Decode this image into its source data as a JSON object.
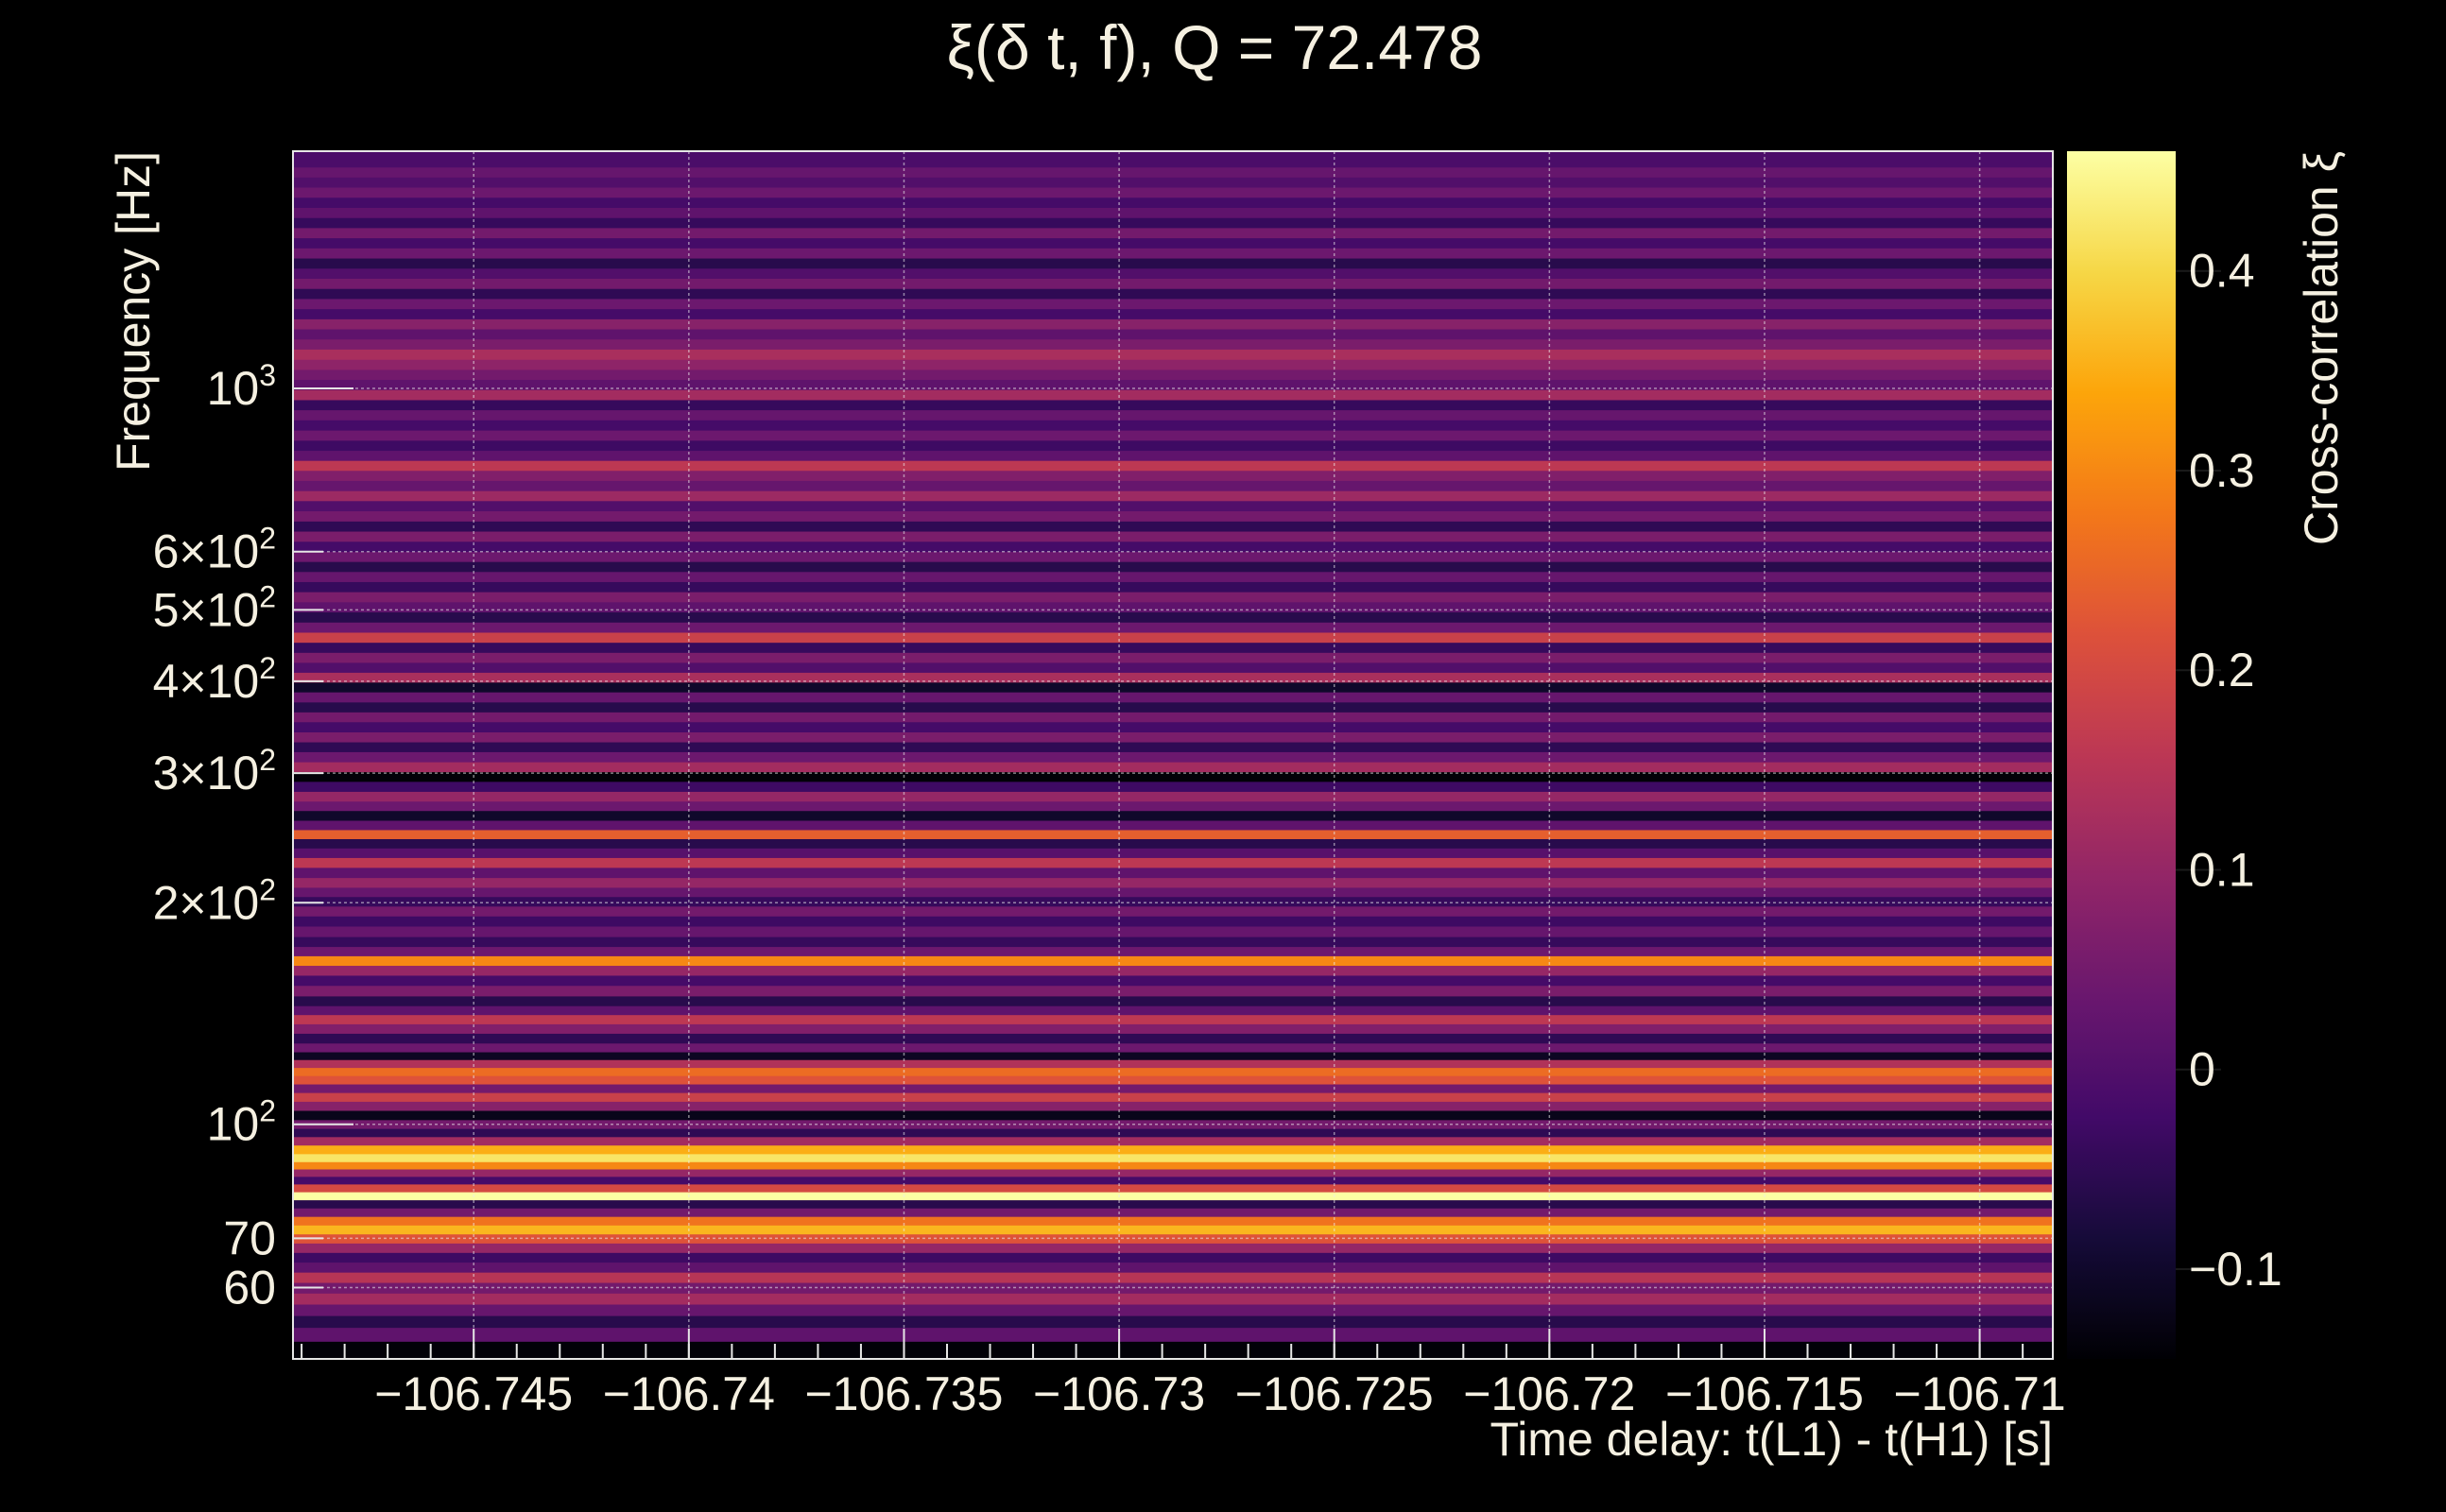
{
  "chart_data": {
    "type": "heatmap",
    "title": "ξ(δ t, f), Q = 72.478",
    "xlabel": "Time delay: t(L1) - t(H1) [s]",
    "ylabel": "Frequency [Hz]",
    "colorbar_label": "Cross-correlation ξ",
    "colormap": "inferno",
    "background": "#000000",
    "text_color": "#f5f0e1",
    "grid": true,
    "y_scale": "log",
    "xlim": [
      -106.7492,
      -106.7083
    ],
    "ylim": [
      48,
      2100
    ],
    "clim": [
      -0.145,
      0.46
    ],
    "x_ticks": [
      {
        "value": -106.745,
        "label": "−106.745"
      },
      {
        "value": -106.74,
        "label": "−106.74"
      },
      {
        "value": -106.735,
        "label": "−106.735"
      },
      {
        "value": -106.73,
        "label": "−106.73"
      },
      {
        "value": -106.725,
        "label": "−106.725"
      },
      {
        "value": -106.72,
        "label": "−106.72"
      },
      {
        "value": -106.715,
        "label": "−106.715"
      },
      {
        "value": -106.71,
        "label": "−106.71"
      }
    ],
    "y_ticks": [
      {
        "value": 60,
        "label": "60"
      },
      {
        "value": 70,
        "label": "70"
      },
      {
        "value": 100,
        "base": "10",
        "exp": "2"
      },
      {
        "value": 200,
        "base": "2×10",
        "exp": "2"
      },
      {
        "value": 300,
        "base": "3×10",
        "exp": "2"
      },
      {
        "value": 400,
        "base": "4×10",
        "exp": "2"
      },
      {
        "value": 500,
        "base": "5×10",
        "exp": "2"
      },
      {
        "value": 600,
        "base": "6×10",
        "exp": "2"
      },
      {
        "value": 1000,
        "base": "10",
        "exp": "3"
      }
    ],
    "colorbar_ticks": [
      {
        "value": -0.1,
        "label": "−0.1"
      },
      {
        "value": 0,
        "label": "0"
      },
      {
        "value": 0.1,
        "label": "0.1"
      },
      {
        "value": 0.2,
        "label": "0.2"
      },
      {
        "value": 0.3,
        "label": "0.3"
      },
      {
        "value": 0.4,
        "label": "0.4"
      }
    ],
    "bands": [
      {
        "f": 49.5,
        "xi": -0.14
      },
      {
        "f": 52,
        "xi": 0.02
      },
      {
        "f": 54,
        "xi": -0.06
      },
      {
        "f": 56,
        "xi": 0.03
      },
      {
        "f": 58,
        "xi": 0.12
      },
      {
        "f": 60,
        "xi": 0.05
      },
      {
        "f": 62,
        "xi": 0.15
      },
      {
        "f": 64,
        "xi": 0.02
      },
      {
        "f": 66,
        "xi": -0.03
      },
      {
        "f": 68,
        "xi": 0.1
      },
      {
        "f": 70,
        "xi": 0.22
      },
      {
        "f": 72,
        "xi": 0.36
      },
      {
        "f": 74,
        "xi": 0.27
      },
      {
        "f": 76,
        "xi": 0.05
      },
      {
        "f": 78,
        "xi": -0.06
      },
      {
        "f": 80,
        "xi": 0.46
      },
      {
        "f": 82,
        "xi": 0.2
      },
      {
        "f": 84,
        "xi": -0.02
      },
      {
        "f": 86,
        "xi": 0.1
      },
      {
        "f": 88,
        "xi": 0.3
      },
      {
        "f": 90,
        "xi": 0.42
      },
      {
        "f": 92.5,
        "xi": 0.35
      },
      {
        "f": 95,
        "xi": 0.12
      },
      {
        "f": 97.5,
        "xi": -0.05
      },
      {
        "f": 100,
        "xi": 0.05
      },
      {
        "f": 103,
        "xi": -0.12
      },
      {
        "f": 106,
        "xi": 0.08
      },
      {
        "f": 109,
        "xi": 0.18
      },
      {
        "f": 112,
        "xi": 0.05
      },
      {
        "f": 115,
        "xi": 0.22
      },
      {
        "f": 118,
        "xi": 0.26
      },
      {
        "f": 121,
        "xi": 0.14
      },
      {
        "f": 124,
        "xi": -0.11
      },
      {
        "f": 127,
        "xi": 0.04
      },
      {
        "f": 131,
        "xi": -0.05
      },
      {
        "f": 135,
        "xi": 0.07
      },
      {
        "f": 139,
        "xi": 0.16
      },
      {
        "f": 143,
        "xi": 0.02
      },
      {
        "f": 147,
        "xi": -0.06
      },
      {
        "f": 152,
        "xi": 0.06
      },
      {
        "f": 157,
        "xi": -0.02
      },
      {
        "f": 162,
        "xi": 0.1
      },
      {
        "f": 167,
        "xi": 0.3
      },
      {
        "f": 172,
        "xi": 0.04
      },
      {
        "f": 177,
        "xi": -0.04
      },
      {
        "f": 183,
        "xi": 0.03
      },
      {
        "f": 189,
        "xi": -0.03
      },
      {
        "f": 195,
        "xi": 0.05
      },
      {
        "f": 201,
        "xi": -0.04
      },
      {
        "f": 207,
        "xi": 0.03
      },
      {
        "f": 213,
        "xi": 0.1
      },
      {
        "f": 220,
        "xi": 0.02
      },
      {
        "f": 227,
        "xi": 0.16
      },
      {
        "f": 234,
        "xi": 0.01
      },
      {
        "f": 241,
        "xi": -0.06
      },
      {
        "f": 248,
        "xi": 0.24
      },
      {
        "f": 255,
        "xi": 0.02
      },
      {
        "f": 263,
        "xi": -0.1
      },
      {
        "f": 271,
        "xi": 0.04
      },
      {
        "f": 279,
        "xi": 0.1
      },
      {
        "f": 288,
        "xi": -0.03
      },
      {
        "f": 297,
        "xi": -0.14
      },
      {
        "f": 306,
        "xi": 0.12
      },
      {
        "f": 316,
        "xi": 0.04
      },
      {
        "f": 326,
        "xi": -0.05
      },
      {
        "f": 336,
        "xi": 0.06
      },
      {
        "f": 347,
        "xi": -0.02
      },
      {
        "f": 358,
        "xi": 0.05
      },
      {
        "f": 369,
        "xi": -0.06
      },
      {
        "f": 381,
        "xi": 0.03
      },
      {
        "f": 393,
        "xi": -0.1
      },
      {
        "f": 405,
        "xi": 0.13
      },
      {
        "f": 418,
        "xi": 0.0
      },
      {
        "f": 431,
        "xi": 0.06
      },
      {
        "f": 445,
        "xi": -0.04
      },
      {
        "f": 459,
        "xi": 0.18
      },
      {
        "f": 474,
        "xi": 0.04
      },
      {
        "f": 489,
        "xi": -0.06
      },
      {
        "f": 505,
        "xi": 0.02
      },
      {
        "f": 521,
        "xi": 0.06
      },
      {
        "f": 538,
        "xi": -0.04
      },
      {
        "f": 555,
        "xi": 0.03
      },
      {
        "f": 573,
        "xi": -0.06
      },
      {
        "f": 591,
        "xi": 0.04
      },
      {
        "f": 610,
        "xi": -0.02
      },
      {
        "f": 630,
        "xi": 0.06
      },
      {
        "f": 650,
        "xi": -0.05
      },
      {
        "f": 671,
        "xi": 0.05
      },
      {
        "f": 693,
        "xi": 0.0
      },
      {
        "f": 715,
        "xi": 0.11
      },
      {
        "f": 738,
        "xi": 0.03
      },
      {
        "f": 762,
        "xi": 0.07
      },
      {
        "f": 786,
        "xi": 0.16
      },
      {
        "f": 811,
        "xi": 0.02
      },
      {
        "f": 837,
        "xi": -0.03
      },
      {
        "f": 864,
        "xi": 0.04
      },
      {
        "f": 892,
        "xi": -0.02
      },
      {
        "f": 921,
        "xi": 0.03
      },
      {
        "f": 950,
        "xi": -0.04
      },
      {
        "f": 981,
        "xi": 0.12
      },
      {
        "f": 1012,
        "xi": 0.02
      },
      {
        "f": 1045,
        "xi": 0.05
      },
      {
        "f": 1078,
        "xi": 0.09
      },
      {
        "f": 1113,
        "xi": 0.13
      },
      {
        "f": 1149,
        "xi": 0.06
      },
      {
        "f": 1186,
        "xi": 0.02
      },
      {
        "f": 1224,
        "xi": 0.08
      },
      {
        "f": 1263,
        "xi": -0.02
      },
      {
        "f": 1304,
        "xi": 0.04
      },
      {
        "f": 1346,
        "xi": -0.05
      },
      {
        "f": 1389,
        "xi": 0.05
      },
      {
        "f": 1434,
        "xi": 0.0
      },
      {
        "f": 1480,
        "xi": -0.06
      },
      {
        "f": 1528,
        "xi": 0.04
      },
      {
        "f": 1577,
        "xi": -0.02
      },
      {
        "f": 1628,
        "xi": 0.05
      },
      {
        "f": 1680,
        "xi": -0.04
      },
      {
        "f": 1734,
        "xi": 0.02
      },
      {
        "f": 1790,
        "xi": -0.02
      },
      {
        "f": 1848,
        "xi": 0.04
      },
      {
        "f": 1907,
        "xi": 0.0
      },
      {
        "f": 1968,
        "xi": 0.03
      },
      {
        "f": 2031,
        "xi": -0.01
      }
    ]
  }
}
